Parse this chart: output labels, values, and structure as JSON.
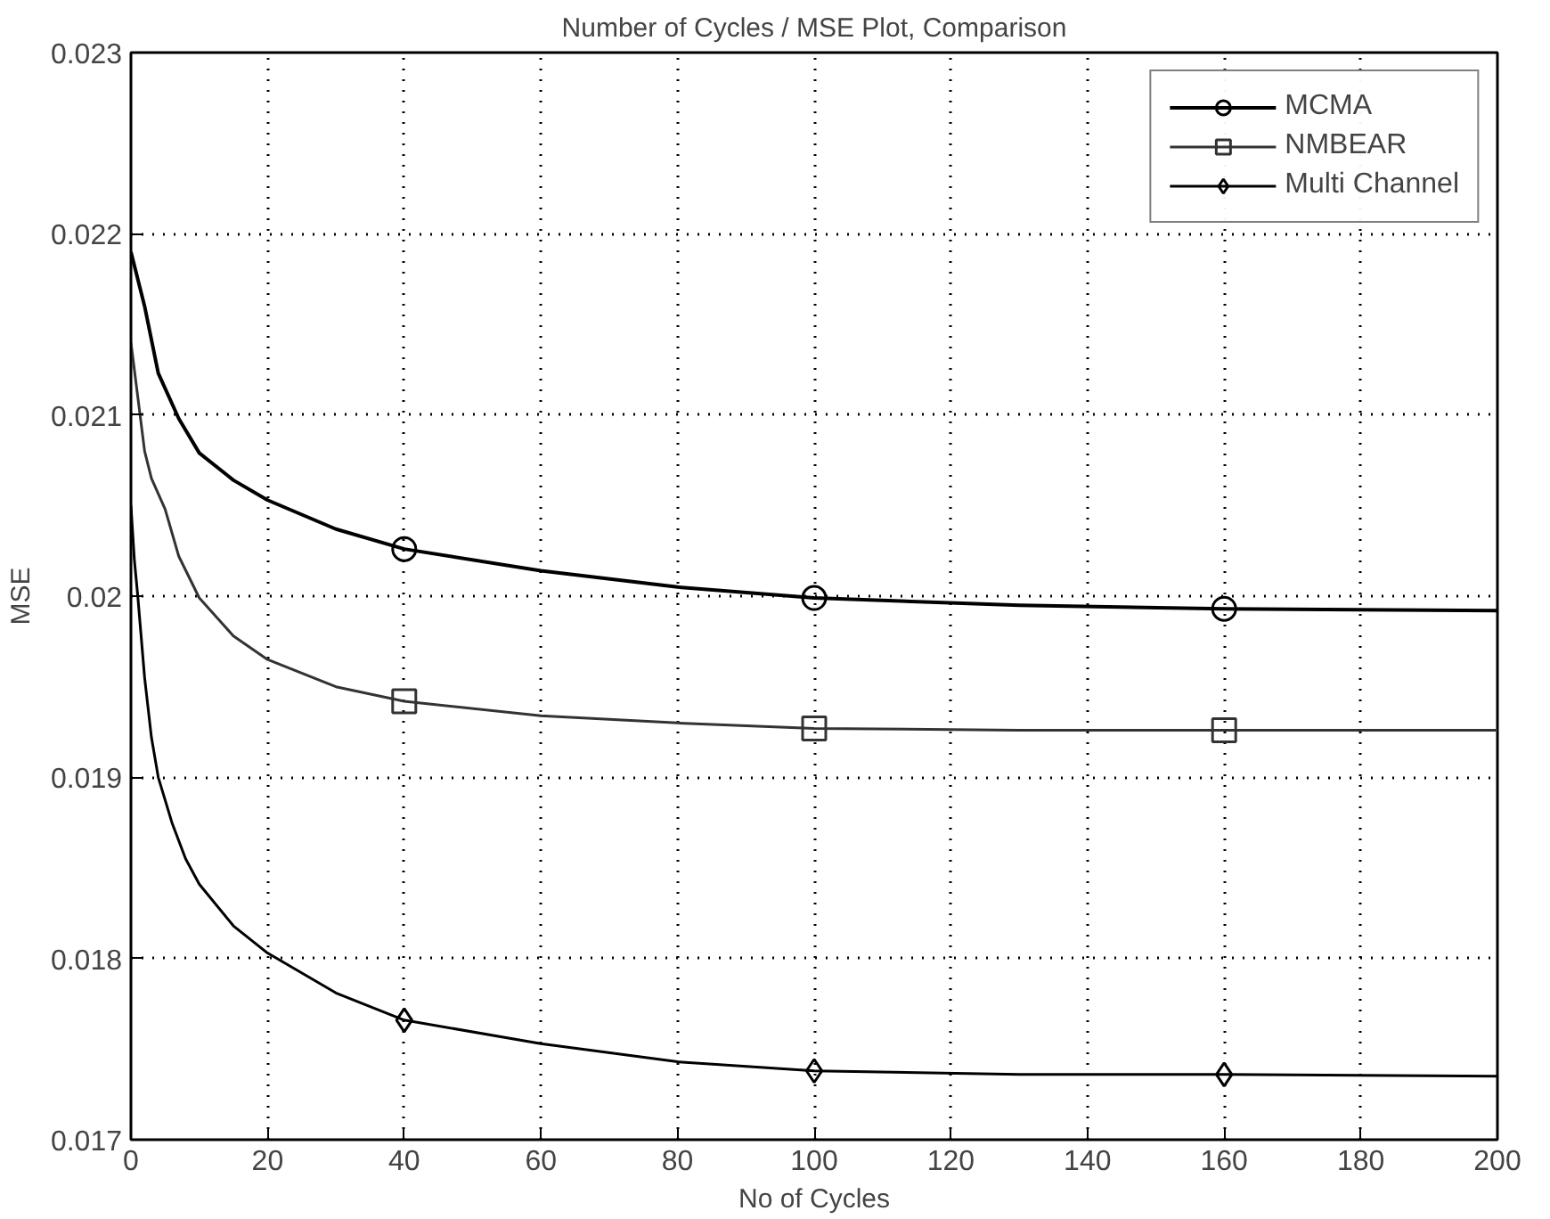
{
  "chart_data": {
    "type": "line",
    "title": "Number of Cycles / MSE Plot, Comparison",
    "xlabel": "No of Cycles",
    "ylabel": "MSE",
    "xlim": [
      0,
      200
    ],
    "xticks": [
      0,
      20,
      40,
      60,
      80,
      100,
      120,
      140,
      160,
      180,
      200
    ],
    "ylim": [
      0.017,
      0.023
    ],
    "yticks": [
      0.017,
      0.018,
      0.019,
      0.02,
      0.021,
      0.022,
      0.023
    ],
    "grid": true,
    "legend": "top right",
    "line_style": "solid",
    "series": [
      {
        "name": "MCMA",
        "color": "#000000",
        "x": [
          0,
          1,
          2,
          4,
          7,
          10,
          15,
          20,
          30,
          40,
          60,
          80,
          100,
          130,
          160,
          200
        ],
        "values": [
          0.0219,
          0.02175,
          0.0216,
          0.02123,
          0.02098,
          0.02079,
          0.02064,
          0.02053,
          0.02037,
          0.02026,
          0.02014,
          0.02005,
          0.01999,
          0.01995,
          0.01993,
          0.01992
        ]
      },
      {
        "type": "scatter",
        "color": "#000000",
        "marker": "circle",
        "x": [
          40,
          100,
          160
        ],
        "values": [
          0.02026,
          0.01999,
          0.01993
        ]
      },
      {
        "name": "NMBEAR",
        "color": "#333333",
        "x": [
          0,
          1,
          2,
          3,
          5,
          7,
          10,
          15,
          20,
          30,
          40,
          60,
          80,
          100,
          130,
          160,
          200
        ],
        "values": [
          0.0214,
          0.0211,
          0.0208,
          0.02065,
          0.02048,
          0.02022,
          0.01999,
          0.01978,
          0.01965,
          0.0195,
          0.01942,
          0.01934,
          0.0193,
          0.01927,
          0.01926,
          0.01926,
          0.01926
        ]
      },
      {
        "type": "scatter",
        "color": "#333333",
        "marker": "square",
        "x": [
          40,
          100,
          160
        ],
        "values": [
          0.01942,
          0.01927,
          0.01926
        ]
      },
      {
        "name": "Multi Channel",
        "color": "#000000",
        "x": [
          0,
          0.5,
          1,
          2,
          3,
          4,
          6,
          8,
          10,
          15,
          20,
          30,
          40,
          60,
          80,
          100,
          130,
          160,
          200
        ],
        "values": [
          0.0205,
          0.0202,
          0.02,
          0.01955,
          0.01922,
          0.019,
          0.01875,
          0.01855,
          0.01841,
          0.01818,
          0.01803,
          0.01781,
          0.01766,
          0.01753,
          0.01743,
          0.01738,
          0.01736,
          0.01736,
          0.01735
        ]
      },
      {
        "type": "scatter",
        "color": "#000000",
        "marker": "diamond",
        "x": [
          40,
          100,
          160
        ],
        "values": [
          0.01766,
          0.01738,
          0.01736
        ]
      }
    ]
  }
}
